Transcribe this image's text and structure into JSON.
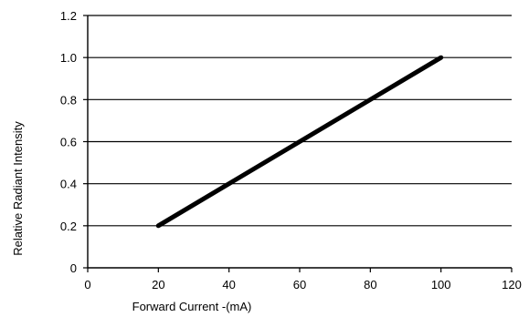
{
  "chart_data": {
    "type": "line",
    "title": "",
    "xlabel": "Forward Current -(mA)",
    "ylabel": "Relative Radiant Intensity",
    "xlim": [
      0,
      120
    ],
    "ylim": [
      0,
      1.2
    ],
    "x_ticks": [
      "0",
      "20",
      "40",
      "60",
      "80",
      "100",
      "120"
    ],
    "y_ticks": [
      "0",
      "0.2",
      "0.4",
      "0.6",
      "0.8",
      "1.0",
      "1.2"
    ],
    "grid": "horizontal",
    "legend": "none",
    "series": [
      {
        "x": [
          20,
          100
        ],
        "y": [
          0.2,
          1.0
        ],
        "color": "#000000"
      }
    ]
  }
}
